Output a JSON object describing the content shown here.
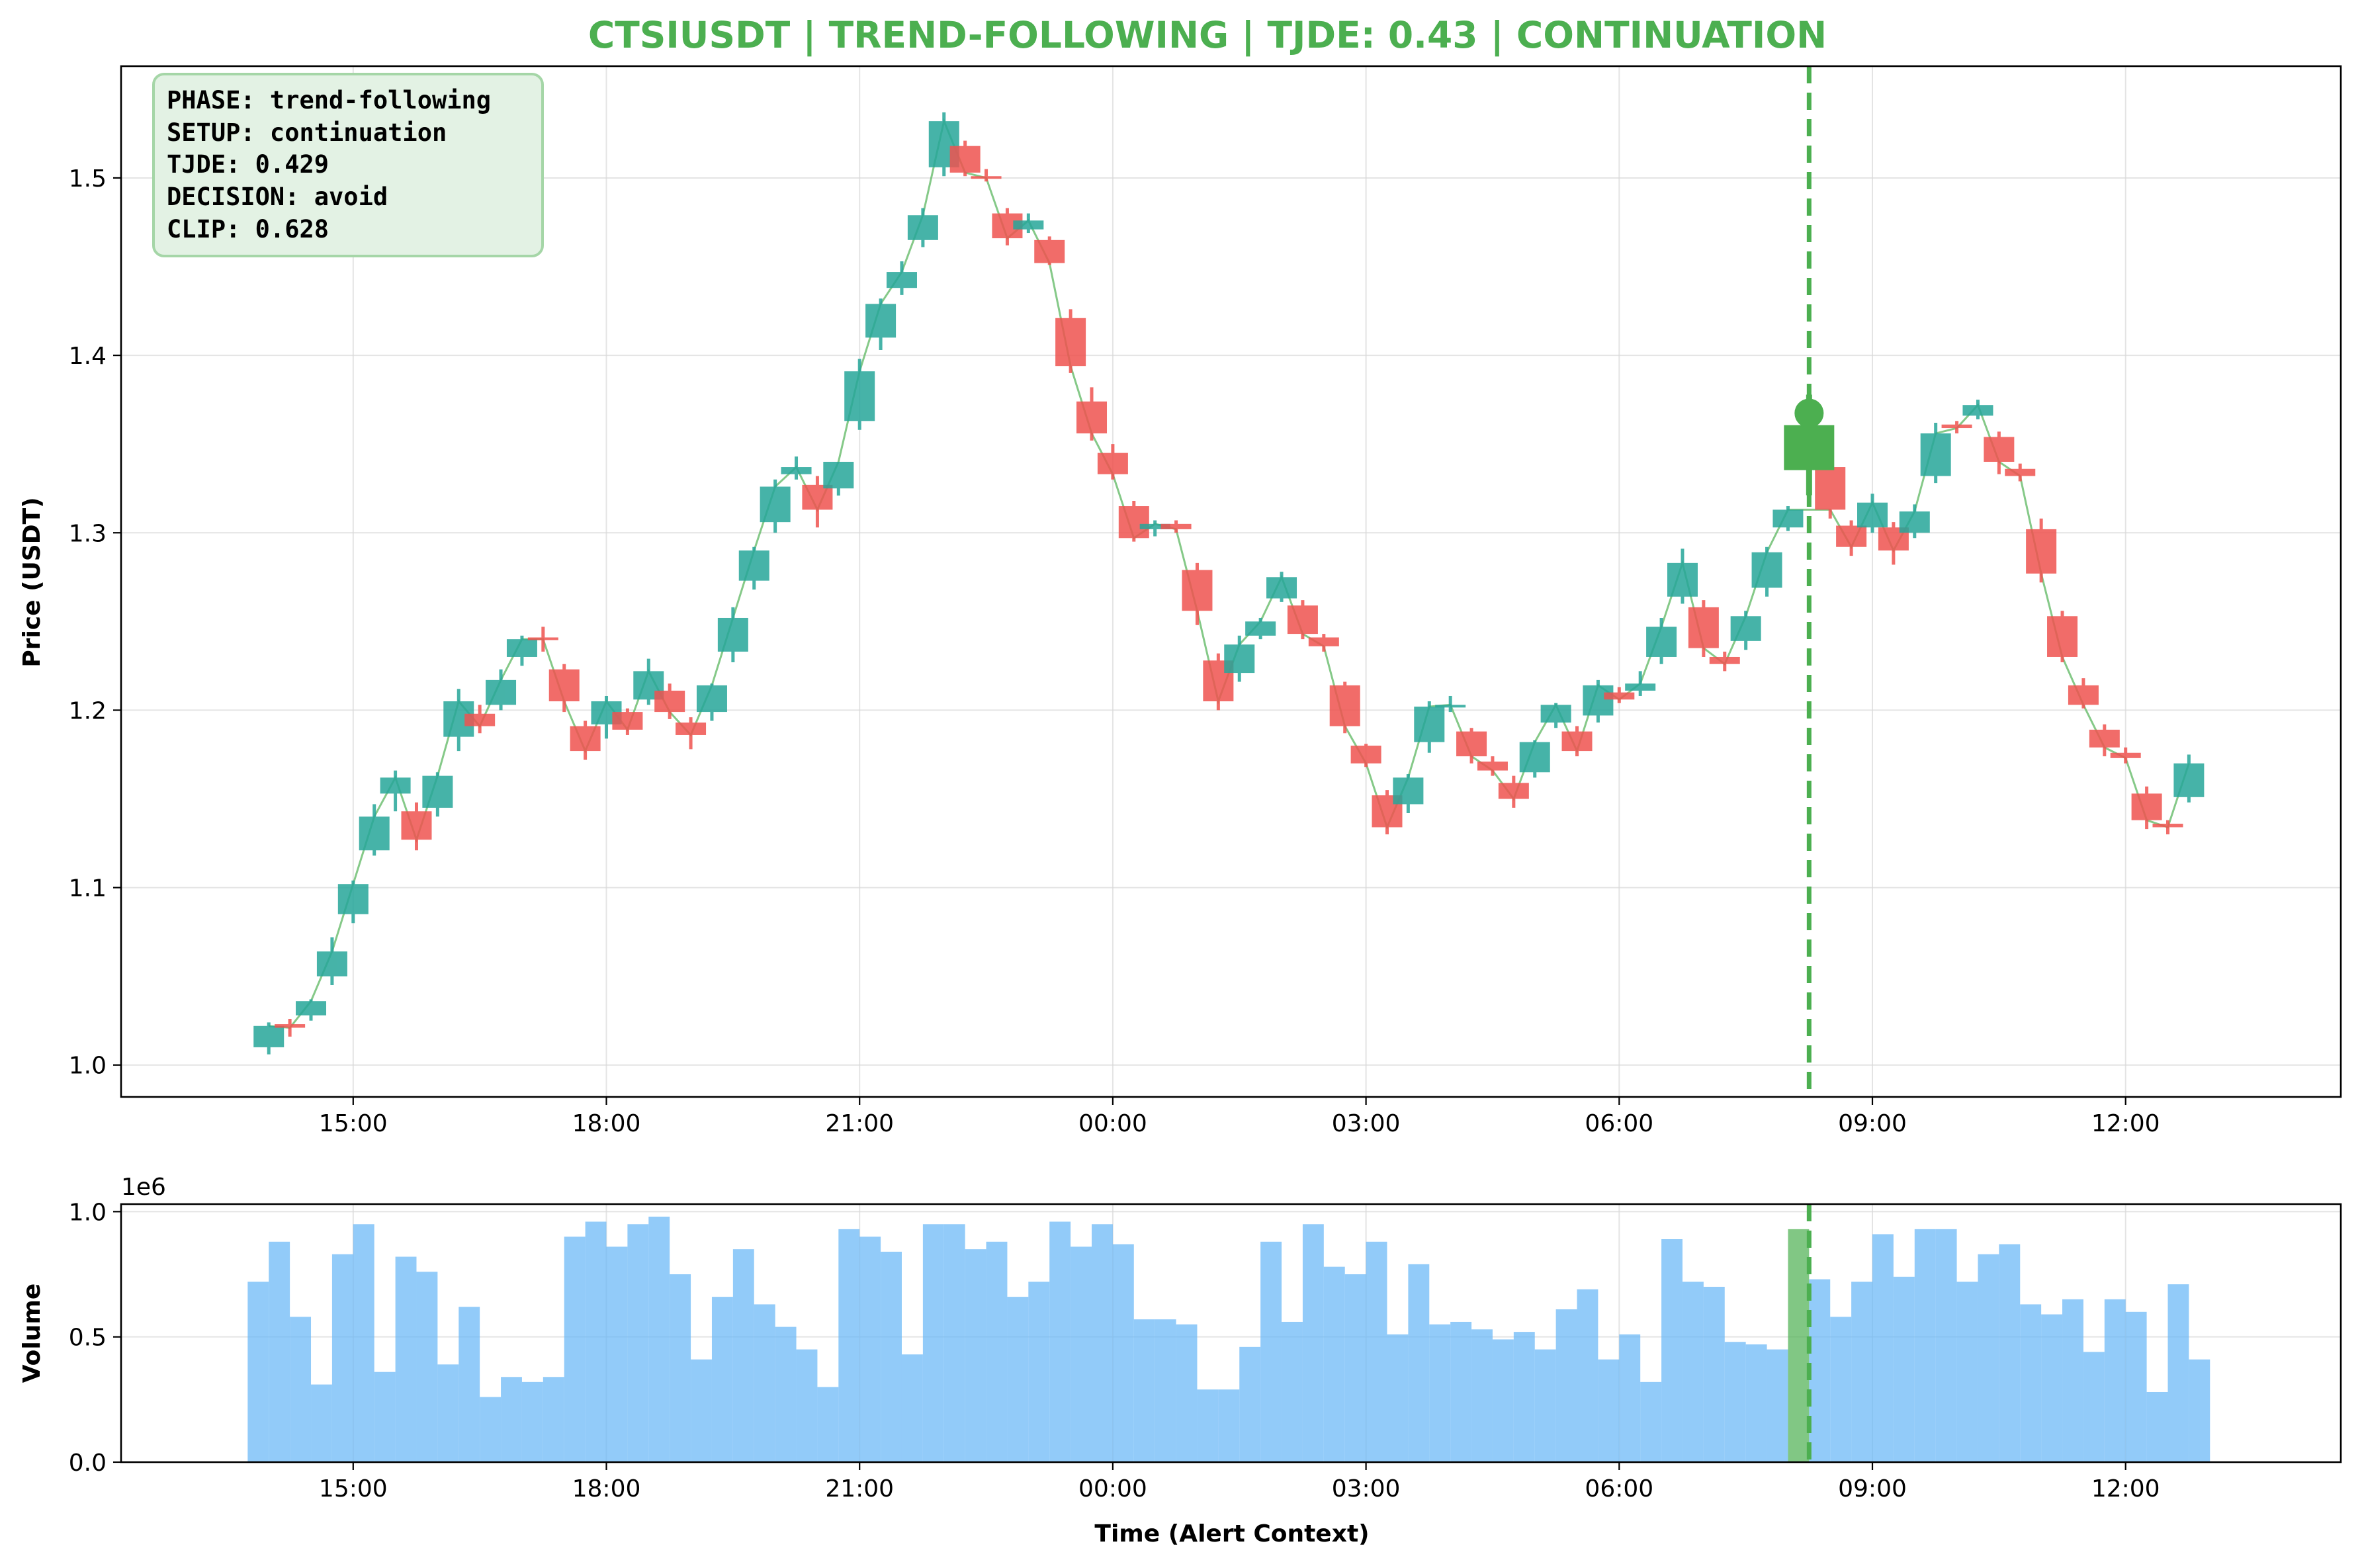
{
  "chart_data": [
    {
      "type": "candlestick",
      "title": "CTSIUSDT | TREND-FOLLOWING | TJDE: 0.43 | CONTINUATION",
      "title_color": "#4caf50",
      "xlabel": "",
      "ylabel": "Price (USDT)",
      "ylim": [
        0.982,
        1.563
      ],
      "yticks": [
        1.0,
        1.1,
        1.2,
        1.3,
        1.4,
        1.5
      ],
      "ytick_labels": [
        "1.0",
        "1.1",
        "1.2",
        "1.3",
        "1.4",
        "1.5"
      ],
      "x_range_hours": [
        12.25,
        38.55
      ],
      "xticks_hours": [
        15,
        18,
        21,
        24,
        27,
        30,
        33,
        36
      ],
      "xtick_labels": [
        "15:00",
        "18:00",
        "21:00",
        "00:00",
        "03:00",
        "06:00",
        "09:00",
        "12:00"
      ],
      "grid": true,
      "colors": {
        "up": "#26a69a",
        "down": "#ef5350",
        "line": "#66bb6a",
        "alert": "#4caf50"
      },
      "alert_time_hours": 32.25,
      "alert_price": 1.348,
      "info_box": {
        "lines": [
          "PHASE: trend-following",
          "SETUP: continuation",
          "TJDE: 0.429",
          "DECISION: avoid",
          "CLIP: 0.628"
        ],
        "background": "#e3f2e4",
        "border": "#a5d6a7"
      },
      "candles": [
        {
          "t": 14.0,
          "o": 1.01,
          "h": 1.024,
          "l": 1.006,
          "c": 1.022
        },
        {
          "t": 14.25,
          "o": 1.023,
          "h": 1.026,
          "l": 1.016,
          "c": 1.021
        },
        {
          "t": 14.5,
          "o": 1.028,
          "h": 1.037,
          "l": 1.025,
          "c": 1.036
        },
        {
          "t": 14.75,
          "o": 1.05,
          "h": 1.072,
          "l": 1.045,
          "c": 1.064
        },
        {
          "t": 15.0,
          "o": 1.085,
          "h": 1.104,
          "l": 1.08,
          "c": 1.102
        },
        {
          "t": 15.25,
          "o": 1.121,
          "h": 1.147,
          "l": 1.118,
          "c": 1.14
        },
        {
          "t": 15.5,
          "o": 1.153,
          "h": 1.166,
          "l": 1.143,
          "c": 1.162
        },
        {
          "t": 15.75,
          "o": 1.143,
          "h": 1.148,
          "l": 1.121,
          "c": 1.127
        },
        {
          "t": 16.0,
          "o": 1.145,
          "h": 1.165,
          "l": 1.14,
          "c": 1.163
        },
        {
          "t": 16.25,
          "o": 1.185,
          "h": 1.212,
          "l": 1.177,
          "c": 1.205
        },
        {
          "t": 16.5,
          "o": 1.198,
          "h": 1.203,
          "l": 1.187,
          "c": 1.191
        },
        {
          "t": 16.75,
          "o": 1.203,
          "h": 1.223,
          "l": 1.2,
          "c": 1.217
        },
        {
          "t": 17.0,
          "o": 1.23,
          "h": 1.242,
          "l": 1.225,
          "c": 1.24
        },
        {
          "t": 17.25,
          "o": 1.241,
          "h": 1.247,
          "l": 1.233,
          "c": 1.24
        },
        {
          "t": 17.5,
          "o": 1.223,
          "h": 1.226,
          "l": 1.199,
          "c": 1.205
        },
        {
          "t": 17.75,
          "o": 1.191,
          "h": 1.194,
          "l": 1.172,
          "c": 1.177
        },
        {
          "t": 18.0,
          "o": 1.192,
          "h": 1.208,
          "l": 1.184,
          "c": 1.205
        },
        {
          "t": 18.25,
          "o": 1.199,
          "h": 1.201,
          "l": 1.186,
          "c": 1.189
        },
        {
          "t": 18.5,
          "o": 1.206,
          "h": 1.229,
          "l": 1.203,
          "c": 1.222
        },
        {
          "t": 18.75,
          "o": 1.211,
          "h": 1.215,
          "l": 1.195,
          "c": 1.199
        },
        {
          "t": 19.0,
          "o": 1.193,
          "h": 1.196,
          "l": 1.178,
          "c": 1.186
        },
        {
          "t": 19.25,
          "o": 1.199,
          "h": 1.215,
          "l": 1.194,
          "c": 1.214
        },
        {
          "t": 19.5,
          "o": 1.233,
          "h": 1.258,
          "l": 1.227,
          "c": 1.252
        },
        {
          "t": 19.75,
          "o": 1.273,
          "h": 1.292,
          "l": 1.268,
          "c": 1.29
        },
        {
          "t": 20.0,
          "o": 1.306,
          "h": 1.33,
          "l": 1.3,
          "c": 1.326
        },
        {
          "t": 20.25,
          "o": 1.333,
          "h": 1.343,
          "l": 1.33,
          "c": 1.337
        },
        {
          "t": 20.5,
          "o": 1.327,
          "h": 1.332,
          "l": 1.303,
          "c": 1.313
        },
        {
          "t": 20.75,
          "o": 1.325,
          "h": 1.34,
          "l": 1.321,
          "c": 1.34
        },
        {
          "t": 21.0,
          "o": 1.363,
          "h": 1.398,
          "l": 1.358,
          "c": 1.391
        },
        {
          "t": 21.25,
          "o": 1.41,
          "h": 1.432,
          "l": 1.403,
          "c": 1.429
        },
        {
          "t": 21.5,
          "o": 1.438,
          "h": 1.453,
          "l": 1.434,
          "c": 1.447
        },
        {
          "t": 21.75,
          "o": 1.465,
          "h": 1.483,
          "l": 1.461,
          "c": 1.479
        },
        {
          "t": 22.0,
          "o": 1.506,
          "h": 1.537,
          "l": 1.501,
          "c": 1.532
        },
        {
          "t": 22.25,
          "o": 1.518,
          "h": 1.521,
          "l": 1.501,
          "c": 1.503
        },
        {
          "t": 22.5,
          "o": 1.501,
          "h": 1.505,
          "l": 1.498,
          "c": 1.5
        },
        {
          "t": 22.75,
          "o": 1.48,
          "h": 1.483,
          "l": 1.462,
          "c": 1.466
        },
        {
          "t": 23.0,
          "o": 1.471,
          "h": 1.48,
          "l": 1.469,
          "c": 1.476
        },
        {
          "t": 23.25,
          "o": 1.465,
          "h": 1.467,
          "l": 1.451,
          "c": 1.452
        },
        {
          "t": 23.5,
          "o": 1.421,
          "h": 1.426,
          "l": 1.39,
          "c": 1.394
        },
        {
          "t": 23.75,
          "o": 1.374,
          "h": 1.382,
          "l": 1.352,
          "c": 1.356
        },
        {
          "t": 24.0,
          "o": 1.345,
          "h": 1.35,
          "l": 1.33,
          "c": 1.333
        },
        {
          "t": 24.25,
          "o": 1.315,
          "h": 1.318,
          "l": 1.295,
          "c": 1.297
        },
        {
          "t": 24.5,
          "o": 1.302,
          "h": 1.307,
          "l": 1.298,
          "c": 1.305
        },
        {
          "t": 24.75,
          "o": 1.305,
          "h": 1.307,
          "l": 1.3,
          "c": 1.302
        },
        {
          "t": 25.0,
          "o": 1.279,
          "h": 1.283,
          "l": 1.248,
          "c": 1.256
        },
        {
          "t": 25.25,
          "o": 1.228,
          "h": 1.232,
          "l": 1.2,
          "c": 1.205
        },
        {
          "t": 25.5,
          "o": 1.221,
          "h": 1.242,
          "l": 1.216,
          "c": 1.237
        },
        {
          "t": 25.75,
          "o": 1.242,
          "h": 1.252,
          "l": 1.24,
          "c": 1.25
        },
        {
          "t": 26.0,
          "o": 1.263,
          "h": 1.278,
          "l": 1.261,
          "c": 1.275
        },
        {
          "t": 26.25,
          "o": 1.259,
          "h": 1.262,
          "l": 1.24,
          "c": 1.243
        },
        {
          "t": 26.5,
          "o": 1.241,
          "h": 1.243,
          "l": 1.233,
          "c": 1.236
        },
        {
          "t": 26.75,
          "o": 1.214,
          "h": 1.216,
          "l": 1.187,
          "c": 1.191
        },
        {
          "t": 27.0,
          "o": 1.18,
          "h": 1.181,
          "l": 1.168,
          "c": 1.17
        },
        {
          "t": 27.25,
          "o": 1.152,
          "h": 1.155,
          "l": 1.13,
          "c": 1.134
        },
        {
          "t": 27.5,
          "o": 1.147,
          "h": 1.164,
          "l": 1.142,
          "c": 1.162
        },
        {
          "t": 27.75,
          "o": 1.182,
          "h": 1.205,
          "l": 1.176,
          "c": 1.202
        },
        {
          "t": 28.0,
          "o": 1.203,
          "h": 1.208,
          "l": 1.199,
          "c": 1.203
        },
        {
          "t": 28.25,
          "o": 1.188,
          "h": 1.19,
          "l": 1.17,
          "c": 1.174
        },
        {
          "t": 28.5,
          "o": 1.171,
          "h": 1.174,
          "l": 1.163,
          "c": 1.166
        },
        {
          "t": 28.75,
          "o": 1.159,
          "h": 1.163,
          "l": 1.145,
          "c": 1.15
        },
        {
          "t": 29.0,
          "o": 1.165,
          "h": 1.183,
          "l": 1.162,
          "c": 1.182
        },
        {
          "t": 29.25,
          "o": 1.193,
          "h": 1.204,
          "l": 1.19,
          "c": 1.203
        },
        {
          "t": 29.5,
          "o": 1.188,
          "h": 1.191,
          "l": 1.174,
          "c": 1.177
        },
        {
          "t": 29.75,
          "o": 1.197,
          "h": 1.217,
          "l": 1.193,
          "c": 1.214
        },
        {
          "t": 30.0,
          "o": 1.21,
          "h": 1.213,
          "l": 1.204,
          "c": 1.206
        },
        {
          "t": 30.25,
          "o": 1.211,
          "h": 1.222,
          "l": 1.208,
          "c": 1.215
        },
        {
          "t": 30.5,
          "o": 1.23,
          "h": 1.252,
          "l": 1.226,
          "c": 1.247
        },
        {
          "t": 30.75,
          "o": 1.264,
          "h": 1.291,
          "l": 1.26,
          "c": 1.283
        },
        {
          "t": 31.0,
          "o": 1.258,
          "h": 1.262,
          "l": 1.23,
          "c": 1.235
        },
        {
          "t": 31.25,
          "o": 1.23,
          "h": 1.233,
          "l": 1.222,
          "c": 1.226
        },
        {
          "t": 31.5,
          "o": 1.239,
          "h": 1.256,
          "l": 1.234,
          "c": 1.253
        },
        {
          "t": 31.75,
          "o": 1.269,
          "h": 1.292,
          "l": 1.264,
          "c": 1.289
        },
        {
          "t": 32.0,
          "o": 1.303,
          "h": 1.315,
          "l": 1.301,
          "c": 1.313
        },
        {
          "t": 32.5,
          "o": 1.337,
          "h": 1.34,
          "l": 1.308,
          "c": 1.313
        },
        {
          "t": 32.75,
          "o": 1.304,
          "h": 1.307,
          "l": 1.287,
          "c": 1.292
        },
        {
          "t": 33.0,
          "o": 1.303,
          "h": 1.322,
          "l": 1.3,
          "c": 1.317
        },
        {
          "t": 33.25,
          "o": 1.303,
          "h": 1.306,
          "l": 1.282,
          "c": 1.29
        },
        {
          "t": 33.5,
          "o": 1.3,
          "h": 1.316,
          "l": 1.297,
          "c": 1.312
        },
        {
          "t": 33.75,
          "o": 1.332,
          "h": 1.362,
          "l": 1.328,
          "c": 1.356
        },
        {
          "t": 34.0,
          "o": 1.361,
          "h": 1.363,
          "l": 1.356,
          "c": 1.359
        },
        {
          "t": 34.25,
          "o": 1.366,
          "h": 1.375,
          "l": 1.364,
          "c": 1.372
        },
        {
          "t": 34.5,
          "o": 1.354,
          "h": 1.357,
          "l": 1.333,
          "c": 1.34
        },
        {
          "t": 34.75,
          "o": 1.336,
          "h": 1.339,
          "l": 1.329,
          "c": 1.332
        },
        {
          "t": 35.0,
          "o": 1.302,
          "h": 1.308,
          "l": 1.272,
          "c": 1.277
        },
        {
          "t": 35.25,
          "o": 1.253,
          "h": 1.256,
          "l": 1.227,
          "c": 1.23
        },
        {
          "t": 35.5,
          "o": 1.214,
          "h": 1.218,
          "l": 1.201,
          "c": 1.203
        },
        {
          "t": 35.75,
          "o": 1.189,
          "h": 1.192,
          "l": 1.174,
          "c": 1.179
        },
        {
          "t": 36.0,
          "o": 1.176,
          "h": 1.179,
          "l": 1.17,
          "c": 1.173
        },
        {
          "t": 36.25,
          "o": 1.153,
          "h": 1.157,
          "l": 1.133,
          "c": 1.138
        },
        {
          "t": 36.5,
          "o": 1.136,
          "h": 1.138,
          "l": 1.13,
          "c": 1.134
        },
        {
          "t": 36.75,
          "o": 1.151,
          "h": 1.175,
          "l": 1.148,
          "c": 1.17
        }
      ]
    },
    {
      "type": "bar",
      "title": "",
      "xlabel": "Time (Alert Context)",
      "ylabel": "Volume",
      "offset_label": "1e6",
      "ylim": [
        0,
        1.03
      ],
      "yticks": [
        0.0,
        0.5,
        1.0
      ],
      "ytick_labels": [
        "0.0",
        "0.5",
        "1.0"
      ],
      "x_range_hours": [
        12.25,
        38.55
      ],
      "xticks_hours": [
        15,
        18,
        21,
        24,
        27,
        30,
        33,
        36
      ],
      "xtick_labels": [
        "15:00",
        "18:00",
        "21:00",
        "00:00",
        "03:00",
        "06:00",
        "09:00",
        "12:00"
      ],
      "grid": true,
      "bar_color": "#64b5f6",
      "bar_width_hours": 0.25,
      "alert_bar": {
        "t": 32.0,
        "value": 0.93,
        "color": "#4caf50"
      },
      "alert_time_hours": 32.25,
      "x": [
        13.75,
        14.0,
        14.25,
        14.5,
        14.75,
        15.0,
        15.25,
        15.5,
        15.75,
        16.0,
        16.25,
        16.5,
        16.75,
        17.0,
        17.25,
        17.5,
        17.75,
        18.0,
        18.25,
        18.5,
        18.75,
        19.0,
        19.25,
        19.5,
        19.75,
        20.0,
        20.25,
        20.5,
        20.75,
        21.0,
        21.25,
        21.5,
        21.75,
        22.0,
        22.25,
        22.5,
        22.75,
        23.0,
        23.25,
        23.5,
        23.75,
        24.0,
        24.25,
        24.5,
        24.75,
        25.0,
        25.25,
        25.5,
        25.75,
        26.0,
        26.25,
        26.5,
        26.75,
        27.0,
        27.25,
        27.5,
        27.75,
        28.0,
        28.25,
        28.5,
        28.75,
        29.0,
        29.25,
        29.5,
        29.75,
        30.0,
        30.25,
        30.5,
        30.75,
        31.0,
        31.25,
        31.5,
        31.75,
        32.25,
        32.5,
        32.75,
        33.0,
        33.25,
        33.5,
        33.75,
        34.0,
        34.25,
        34.5,
        34.75,
        35.0,
        35.25,
        35.5,
        35.75,
        36.0,
        36.25,
        36.5,
        36.75
      ],
      "values": [
        0.72,
        0.88,
        0.58,
        0.31,
        0.83,
        0.95,
        0.36,
        0.82,
        0.76,
        0.39,
        0.62,
        0.26,
        0.34,
        0.32,
        0.34,
        0.9,
        0.96,
        0.86,
        0.95,
        0.98,
        0.75,
        0.41,
        0.66,
        0.85,
        0.63,
        0.54,
        0.45,
        0.3,
        0.93,
        0.9,
        0.84,
        0.43,
        0.95,
        0.95,
        0.85,
        0.88,
        0.66,
        0.72,
        0.96,
        0.86,
        0.95,
        0.87,
        0.57,
        0.57,
        0.55,
        0.29,
        0.29,
        0.46,
        0.88,
        0.56,
        0.95,
        0.78,
        0.75,
        0.88,
        0.51,
        0.79,
        0.55,
        0.56,
        0.53,
        0.49,
        0.52,
        0.45,
        0.61,
        0.69,
        0.41,
        0.51,
        0.32,
        0.89,
        0.72,
        0.7,
        0.48,
        0.47,
        0.45,
        0.73,
        0.58,
        0.72,
        0.91,
        0.74,
        0.93,
        0.93,
        0.72,
        0.83,
        0.87,
        0.63,
        0.59,
        0.65,
        0.44,
        0.65,
        0.6,
        0.28,
        0.71,
        0.41
      ]
    }
  ]
}
